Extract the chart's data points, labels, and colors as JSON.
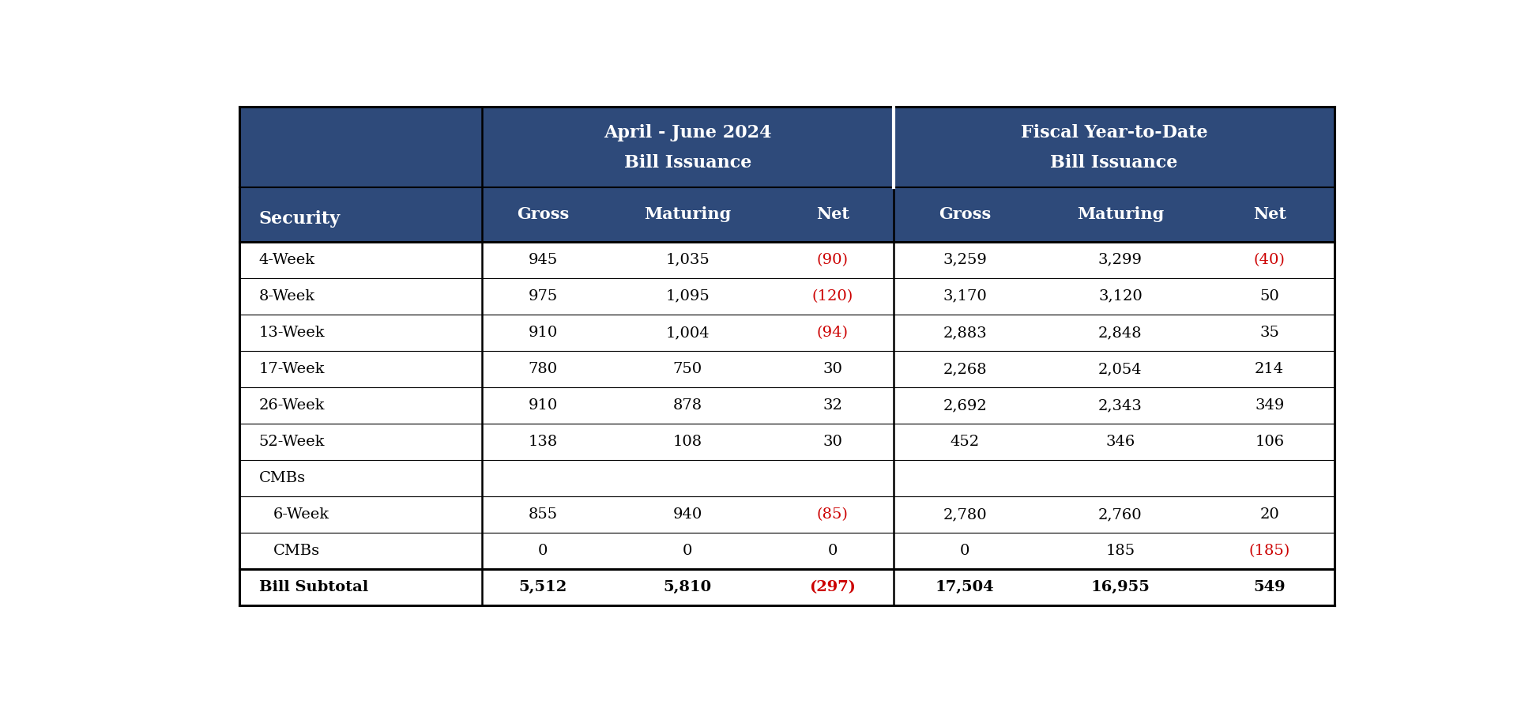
{
  "header_bg_color": "#2E4A7A",
  "header_text_color": "#FFFFFF",
  "border_color": "#000000",
  "negative_color": "#CC0000",
  "positive_color": "#000000",
  "col1_header": "Security",
  "group1_header_line1": "April - June 2024",
  "group1_header_line2": "Bill Issuance",
  "group2_header_line1": "Fiscal Year-to-Date",
  "group2_header_line2": "Bill Issuance",
  "col_headers": [
    "Gross",
    "Maturing",
    "Net",
    "Gross",
    "Maturing",
    "Net"
  ],
  "rows": [
    {
      "label": "4-Week",
      "indent": false,
      "values": [
        "945",
        "1,035",
        "(90)",
        "3,259",
        "3,299",
        "(40)"
      ],
      "neg": [
        false,
        false,
        true,
        false,
        false,
        true
      ]
    },
    {
      "label": "8-Week",
      "indent": false,
      "values": [
        "975",
        "1,095",
        "(120)",
        "3,170",
        "3,120",
        "50"
      ],
      "neg": [
        false,
        false,
        true,
        false,
        false,
        false
      ]
    },
    {
      "label": "13-Week",
      "indent": false,
      "values": [
        "910",
        "1,004",
        "(94)",
        "2,883",
        "2,848",
        "35"
      ],
      "neg": [
        false,
        false,
        true,
        false,
        false,
        false
      ]
    },
    {
      "label": "17-Week",
      "indent": false,
      "values": [
        "780",
        "750",
        "30",
        "2,268",
        "2,054",
        "214"
      ],
      "neg": [
        false,
        false,
        false,
        false,
        false,
        false
      ]
    },
    {
      "label": "26-Week",
      "indent": false,
      "values": [
        "910",
        "878",
        "32",
        "2,692",
        "2,343",
        "349"
      ],
      "neg": [
        false,
        false,
        false,
        false,
        false,
        false
      ]
    },
    {
      "label": "52-Week",
      "indent": false,
      "values": [
        "138",
        "108",
        "30",
        "452",
        "346",
        "106"
      ],
      "neg": [
        false,
        false,
        false,
        false,
        false,
        false
      ]
    },
    {
      "label": "CMBs",
      "indent": false,
      "values": [
        "",
        "",
        "",
        "",
        "",
        ""
      ],
      "neg": [
        false,
        false,
        false,
        false,
        false,
        false
      ]
    },
    {
      "label": "6-Week",
      "indent": true,
      "values": [
        "855",
        "940",
        "(85)",
        "2,780",
        "2,760",
        "20"
      ],
      "neg": [
        false,
        false,
        true,
        false,
        false,
        false
      ]
    },
    {
      "label": "CMBs",
      "indent": true,
      "values": [
        "0",
        "0",
        "0",
        "0",
        "185",
        "(185)"
      ],
      "neg": [
        false,
        false,
        false,
        false,
        false,
        true
      ]
    }
  ],
  "subtotal_row": {
    "label": "Bill Subtotal",
    "values": [
      "5,512",
      "5,810",
      "(297)",
      "17,504",
      "16,955",
      "549"
    ],
    "neg": [
      false,
      false,
      true,
      false,
      false,
      false
    ]
  },
  "figsize": [
    19.44,
    8.92
  ],
  "dpi": 100
}
